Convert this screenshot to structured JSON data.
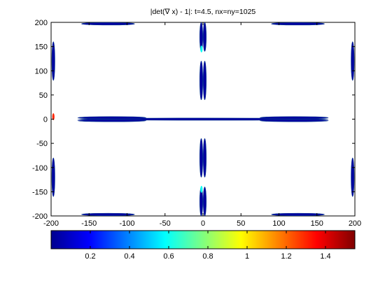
{
  "chart_data": {
    "type": "heatmap",
    "title": "|det(∇ x) - 1|: t=4.5, nx=ny=1025",
    "xlabel": "",
    "ylabel": "",
    "xlim": [
      -200,
      200
    ],
    "ylim": [
      -200,
      200
    ],
    "x_ticks": [
      -200,
      -150,
      -100,
      -50,
      0,
      50,
      100,
      150,
      200
    ],
    "y_ticks": [
      200,
      150,
      100,
      50,
      0,
      -50,
      -100,
      -150,
      -200
    ],
    "grid": false,
    "colorbar": {
      "colormap": "jet",
      "range": [
        0.0,
        1.55
      ],
      "ticks": [
        0.2,
        0.4,
        0.6,
        0.8,
        1,
        1.2,
        1.4
      ]
    },
    "features": [
      {
        "shape": "horizontal-streak",
        "x": [
          -165,
          165
        ],
        "y": 0,
        "level": 0.05,
        "note": "thin line along y=0"
      },
      {
        "shape": "horizontal-streak",
        "x": [
          -165,
          -75
        ],
        "y": 3,
        "level": 0.05
      },
      {
        "shape": "horizontal-streak",
        "x": [
          75,
          165
        ],
        "y": 3,
        "level": 0.05
      },
      {
        "shape": "horizontal-streak",
        "x": [
          -165,
          -75
        ],
        "y": -3,
        "level": 0.05
      },
      {
        "shape": "horizontal-streak",
        "x": [
          75,
          165
        ],
        "y": -3,
        "level": 0.05
      },
      {
        "shape": "vertical-lobe",
        "x": 0,
        "y": [
          40,
          120
        ],
        "level": 0.05
      },
      {
        "shape": "vertical-lobe",
        "x": 0,
        "y": [
          -120,
          -40
        ],
        "level": 0.05
      },
      {
        "shape": "vertical-lobe",
        "x": 0,
        "y": [
          140,
          200
        ],
        "level": 0.05
      },
      {
        "shape": "vertical-lobe",
        "x": 0,
        "y": [
          -200,
          -140
        ],
        "level": 0.05
      },
      {
        "shape": "edge-lobe",
        "x": -197,
        "y": [
          80,
          160
        ],
        "level": 0.05
      },
      {
        "shape": "edge-lobe",
        "x": -197,
        "y": [
          -160,
          -80
        ],
        "level": 0.05
      },
      {
        "shape": "edge-lobe",
        "x": 197,
        "y": [
          80,
          160
        ],
        "level": 0.05
      },
      {
        "shape": "edge-lobe",
        "x": 197,
        "y": [
          -160,
          -80
        ],
        "level": 0.05
      },
      {
        "shape": "edge-lobe",
        "x": [
          -160,
          -90
        ],
        "y": 197,
        "level": 0.05
      },
      {
        "shape": "edge-lobe",
        "x": [
          90,
          160
        ],
        "y": 197,
        "level": 0.05
      },
      {
        "shape": "edge-lobe",
        "x": [
          -160,
          -90
        ],
        "y": -197,
        "level": 0.05
      },
      {
        "shape": "edge-lobe",
        "x": [
          90,
          160
        ],
        "y": -197,
        "level": 0.05
      },
      {
        "shape": "spot",
        "x": -197,
        "y": 5,
        "level": 1.3
      },
      {
        "shape": "spot",
        "x": -2,
        "y": 145,
        "level": 0.6
      },
      {
        "shape": "spot",
        "x": -2,
        "y": -145,
        "level": 0.6
      }
    ]
  }
}
